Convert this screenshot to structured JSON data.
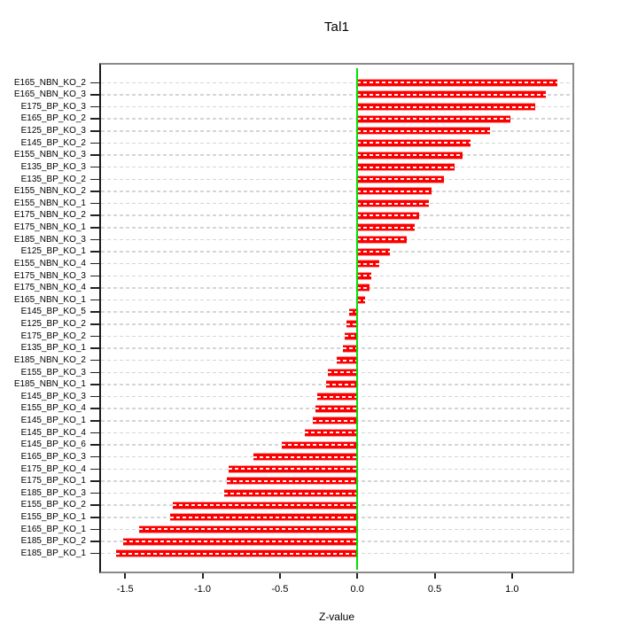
{
  "chart_data": {
    "type": "bar",
    "orientation": "horizontal",
    "title": "Tal1",
    "xlabel": "Z-value",
    "categories": [
      "E165_NBN_KO_2",
      "E165_NBN_KO_3",
      "E175_BP_KO_3",
      "E165_BP_KO_2",
      "E125_BP_KO_3",
      "E145_BP_KO_2",
      "E155_NBN_KO_3",
      "E135_BP_KO_3",
      "E135_BP_KO_2",
      "E155_NBN_KO_2",
      "E155_NBN_KO_1",
      "E175_NBN_KO_2",
      "E175_NBN_KO_1",
      "E185_NBN_KO_3",
      "E125_BP_KO_1",
      "E155_NBN_KO_4",
      "E175_NBN_KO_3",
      "E175_NBN_KO_4",
      "E165_NBN_KO_1",
      "E145_BP_KO_5",
      "E125_BP_KO_2",
      "E175_BP_KO_2",
      "E135_BP_KO_1",
      "E185_NBN_KO_2",
      "E155_BP_KO_3",
      "E185_NBN_KO_1",
      "E145_BP_KO_3",
      "E155_BP_KO_4",
      "E145_BP_KO_1",
      "E145_BP_KO_4",
      "E145_BP_KO_6",
      "E165_BP_KO_3",
      "E175_BP_KO_4",
      "E175_BP_KO_1",
      "E185_BP_KO_3",
      "E155_BP_KO_2",
      "E155_BP_KO_1",
      "E165_BP_KO_1",
      "E185_BP_KO_2",
      "E185_BP_KO_1"
    ],
    "values": [
      1.29,
      1.22,
      1.15,
      0.99,
      0.86,
      0.73,
      0.68,
      0.63,
      0.56,
      0.48,
      0.46,
      0.4,
      0.37,
      0.32,
      0.21,
      0.14,
      0.09,
      0.08,
      0.05,
      -0.05,
      -0.07,
      -0.08,
      -0.09,
      -0.13,
      -0.19,
      -0.2,
      -0.26,
      -0.27,
      -0.29,
      -0.34,
      -0.49,
      -0.67,
      -0.83,
      -0.84,
      -0.86,
      -1.19,
      -1.21,
      -1.41,
      -1.51,
      -1.56
    ],
    "xlim": [
      -1.67,
      1.4
    ],
    "x_ticks": [
      -1.5,
      -1.0,
      -0.5,
      0.0,
      0.5,
      1.0
    ],
    "x_tick_labels": [
      "-1.5",
      "-1.0",
      "-0.5",
      "0.0",
      "0.5",
      "1.0"
    ],
    "grid": true,
    "zero_reference_line": 0.0,
    "legend": "none",
    "colors": {
      "bar": "#fb0000",
      "bar_edge": "#ff9696",
      "zero_line": "#00e100",
      "grid": "#d5d5d5",
      "box_border": "#8a8a8a",
      "axis_text": "#000000"
    }
  }
}
